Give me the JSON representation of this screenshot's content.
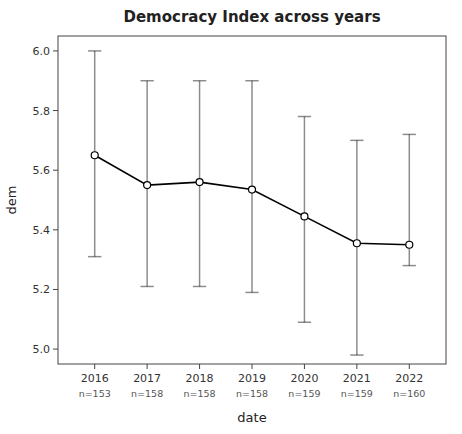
{
  "chart_data": {
    "type": "line",
    "title": "Democracy Index across years",
    "x_label": "date",
    "y_label": "dem",
    "x": [
      2016,
      2017,
      2018,
      2019,
      2020,
      2021,
      2022
    ],
    "series": [
      {
        "color": "black",
        "marker": "circle",
        "values": [
          5.65,
          5.55,
          5.56,
          5.535,
          5.445,
          5.355,
          5.35
        ],
        "ci_upper": [
          6.0,
          5.9,
          5.9,
          5.9,
          5.78,
          5.7,
          5.72
        ],
        "ci_lower": [
          5.31,
          5.21,
          5.21,
          5.19,
          5.09,
          4.98,
          5.28
        ]
      }
    ],
    "annotations": [
      "n=153",
      "n=158",
      "n=158",
      "n=158",
      "n=159",
      "n=159",
      "n=160"
    ],
    "xlim": [
      2015.3,
      2022.7
    ],
    "xticks": [
      2016,
      2017,
      2018,
      2019,
      2020,
      2021,
      2022
    ],
    "ylim": [
      4.95,
      6.05
    ],
    "yticks": [
      {
        "value": 5.0,
        "label": "5.0"
      },
      5.2,
      5.4,
      5.6,
      5.8,
      {
        "value": 6.0,
        "label": "6.0"
      }
    ],
    "grid": false
  }
}
